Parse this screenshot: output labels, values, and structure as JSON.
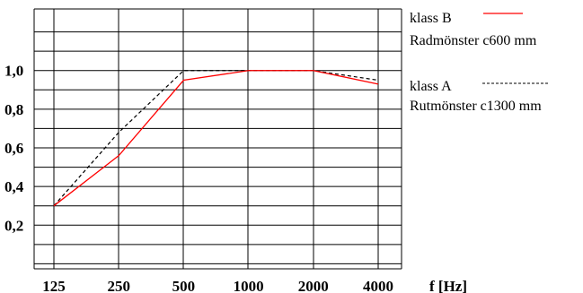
{
  "chart_data": {
    "type": "line",
    "title": "",
    "xlabel": "f [Hz]",
    "ylabel": "",
    "categories": [
      "125",
      "250",
      "500",
      "1000",
      "2000",
      "4000"
    ],
    "y_ticks": [
      "0,2",
      "0,4",
      "0,6",
      "0,8",
      "1,0"
    ],
    "ylim": [
      0.0,
      1.2
    ],
    "grid": true,
    "legend_position": "right",
    "series": [
      {
        "name": "klass B",
        "description": "Radmönster c600 mm",
        "color": "#ff0000",
        "dash": "solid",
        "values": [
          0.3,
          0.56,
          0.95,
          1.0,
          1.0,
          0.93
        ]
      },
      {
        "name": "klass A",
        "description": "Rutmönster c1300 mm",
        "color": "#000000",
        "dash": "dashed",
        "values": [
          0.3,
          0.68,
          1.0,
          1.0,
          1.0,
          0.95
        ]
      }
    ]
  }
}
